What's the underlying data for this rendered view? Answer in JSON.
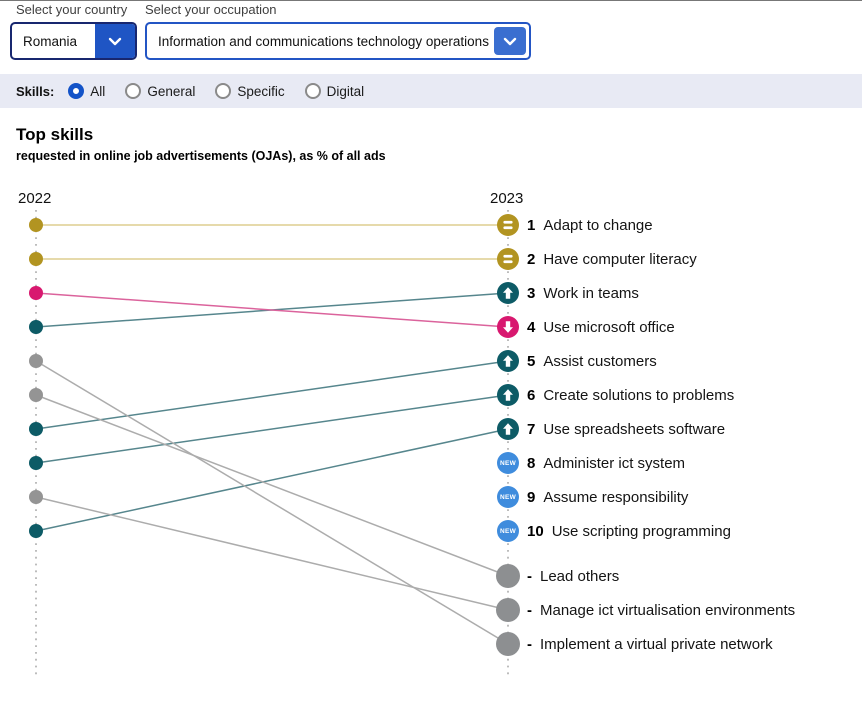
{
  "filters": {
    "country": {
      "label": "Select your country",
      "value": "Romania"
    },
    "occupation": {
      "label": "Select your occupation",
      "value": "Information and communications technology operations ..."
    }
  },
  "skills_filter": {
    "label": "Skills:",
    "options": [
      {
        "label": "All",
        "selected": true
      },
      {
        "label": "General",
        "selected": false
      },
      {
        "label": "Specific",
        "selected": false
      },
      {
        "label": "Digital",
        "selected": false
      }
    ]
  },
  "title": {
    "heading": "Top skills",
    "subtitle": "requested in online job advertisements (OJAs), as % of all ads"
  },
  "chart_data": {
    "type": "slope",
    "left_year": "2022",
    "right_year": "2023",
    "legend": "rank of skill in 2022 vs 2023; dash means dropped out of top 10",
    "palette": {
      "gold": "#b29421",
      "gold_line": "#ddcd8f",
      "teal": "#0d5b66",
      "teal_line": "#56868d",
      "pink": "#d8186f",
      "pink_line": "#db639c",
      "gray": "#949494",
      "gray_line": "#acacac",
      "new_blue": "#3f8cdd",
      "axis_dots": "#b5b5b5"
    },
    "items": [
      {
        "skill": "Adapt to change",
        "rank_2022": 1,
        "rank_2023": 1,
        "trend": "same"
      },
      {
        "skill": "Have computer literacy",
        "rank_2022": 2,
        "rank_2023": 2,
        "trend": "same"
      },
      {
        "skill": "Work in teams",
        "rank_2022": 4,
        "rank_2023": 3,
        "trend": "up"
      },
      {
        "skill": "Use microsoft office",
        "rank_2022": 3,
        "rank_2023": 4,
        "trend": "down"
      },
      {
        "skill": "Assist customers",
        "rank_2022": 7,
        "rank_2023": 5,
        "trend": "up"
      },
      {
        "skill": "Create solutions to problems",
        "rank_2022": 8,
        "rank_2023": 6,
        "trend": "up"
      },
      {
        "skill": "Use spreadsheets software",
        "rank_2022": 10,
        "rank_2023": 7,
        "trend": "up"
      },
      {
        "skill": "Administer ict system",
        "rank_2022": null,
        "rank_2023": 8,
        "trend": "new"
      },
      {
        "skill": "Assume responsibility",
        "rank_2022": null,
        "rank_2023": 9,
        "trend": "new"
      },
      {
        "skill": "Use scripting programming",
        "rank_2022": null,
        "rank_2023": 10,
        "trend": "new"
      },
      {
        "skill": "Lead others",
        "rank_2022": 6,
        "rank_2023": null,
        "trend": "out",
        "marker": "-"
      },
      {
        "skill": "Manage ict virtualisation environments",
        "rank_2022": 9,
        "rank_2023": null,
        "trend": "out",
        "marker": "-"
      },
      {
        "skill": "Implement a virtual private network",
        "rank_2022": 5,
        "rank_2023": null,
        "trend": "out",
        "marker": "-"
      }
    ]
  }
}
